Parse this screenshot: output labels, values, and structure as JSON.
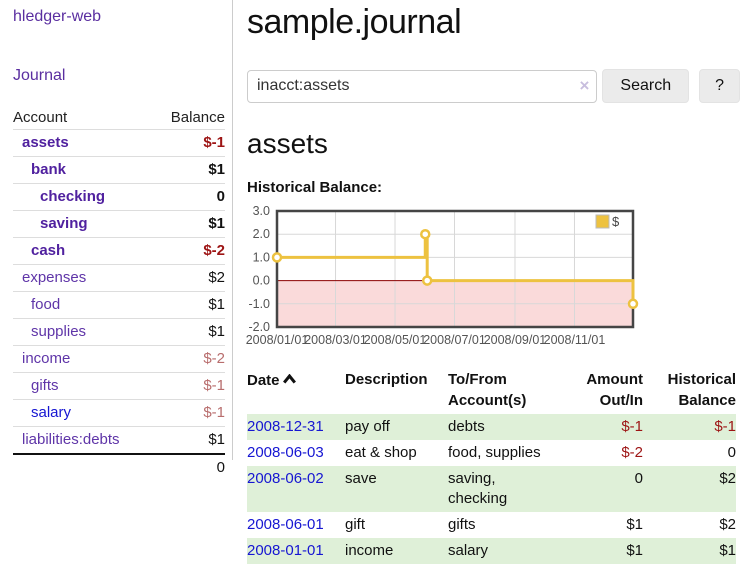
{
  "sidebar": {
    "brand": "hledger-web",
    "journal_link": "Journal",
    "accounts_table": {
      "headers": {
        "account": "Account",
        "balance": "Balance"
      },
      "rows": [
        {
          "name": "assets",
          "depth": 1,
          "bold": true,
          "balance": "$-1"
        },
        {
          "name": "bank",
          "depth": 2,
          "bold": true,
          "balance": "$1"
        },
        {
          "name": "checking",
          "depth": 3,
          "bold": true,
          "balance": "0"
        },
        {
          "name": "saving",
          "depth": 3,
          "bold": true,
          "balance": "$1"
        },
        {
          "name": "cash",
          "depth": 2,
          "bold": true,
          "balance": "$-2"
        },
        {
          "name": "expenses",
          "depth": 1,
          "bold": false,
          "balance": "$2"
        },
        {
          "name": "food",
          "depth": 2,
          "bold": false,
          "balance": "$1"
        },
        {
          "name": "supplies",
          "depth": 2,
          "bold": false,
          "balance": "$1"
        },
        {
          "name": "income",
          "depth": 1,
          "bold": false,
          "balance": "$-2"
        },
        {
          "name": "gifts",
          "depth": 2,
          "bold": false,
          "balance": "$-1"
        },
        {
          "name": "salary",
          "depth": 2,
          "bold": false,
          "balance": "$-1",
          "unvisited": true
        },
        {
          "name": "liabilities:debts",
          "depth": 1,
          "bold": false,
          "balance": "$1"
        }
      ],
      "total": "0"
    }
  },
  "header": {
    "title": "sample.journal"
  },
  "search": {
    "value": "inacct:assets",
    "clear_icon": "×",
    "button_label": "Search",
    "help_label": "?"
  },
  "account_page": {
    "heading": "assets",
    "chart_label": "Historical Balance:"
  },
  "chart_data": {
    "type": "line",
    "step": true,
    "title": "Historical Balance",
    "series": [
      {
        "name": "$",
        "points": [
          [
            "2008-01-01",
            1
          ],
          [
            "2008-06-01",
            2
          ],
          [
            "2008-06-03",
            0
          ],
          [
            "2008-12-31",
            -1
          ]
        ]
      }
    ],
    "x_ticks": [
      "2008/01/01",
      "2008/03/01",
      "2008/05/01",
      "2008/07/01",
      "2008/09/01",
      "2008/11/01"
    ],
    "y_ticks": [
      3.0,
      2.0,
      1.0,
      0.0,
      -1.0,
      -2.0
    ],
    "ylim": [
      -2,
      3
    ],
    "grid": true,
    "legend_position": "top-right",
    "colors": {
      "series": "#edc240",
      "negative_region": "#fadada",
      "zero_line": "#8b0000",
      "grid": "#d8d8d8",
      "border": "#454545"
    }
  },
  "register": {
    "headers": {
      "date": "Date",
      "description": "Description",
      "accounts": "To/From Account(s)",
      "amount": "Amount Out/In",
      "balance": "Historical Balance"
    },
    "sort_icon": "caret-up",
    "rows": [
      {
        "date": "2008-12-31",
        "description": "pay off",
        "accounts": "debts",
        "amount": "$-1",
        "balance": "$-1"
      },
      {
        "date": "2008-06-03",
        "description": "eat & shop",
        "accounts": "food, supplies",
        "amount": "$-2",
        "balance": "0"
      },
      {
        "date": "2008-06-02",
        "description": "save",
        "accounts": "saving, checking",
        "amount": "0",
        "balance": "$2"
      },
      {
        "date": "2008-06-01",
        "description": "gift",
        "accounts": "gifts",
        "amount": "$1",
        "balance": "$2"
      },
      {
        "date": "2008-01-01",
        "description": "income",
        "accounts": "salary",
        "amount": "$1",
        "balance": "$1"
      }
    ]
  },
  "colors": {
    "link_purple": "#5a2ea0",
    "link_blue": "#1616d2",
    "negative_strong": "#9d1414",
    "negative_muted": "#b86d6d",
    "row_stripe_green": "#dff0d8",
    "chart_yellow": "#edc240"
  }
}
